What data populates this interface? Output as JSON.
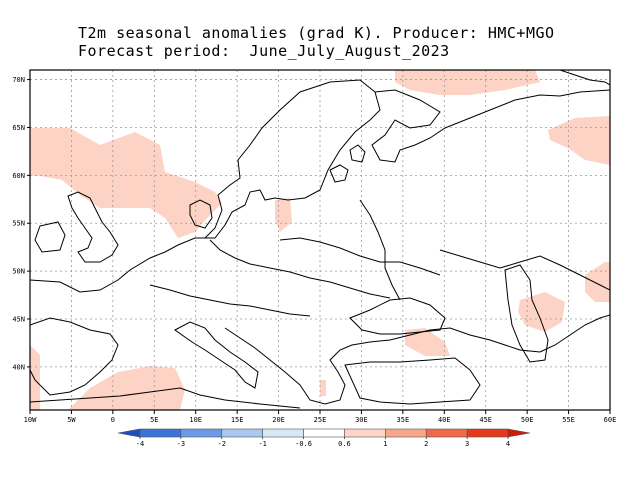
{
  "title": {
    "line1": "T2m seasonal anomalies (grad K). Producer: HMC+MGO",
    "line2": "Forecast period:  June_July_August_2023"
  },
  "map": {
    "lon_ticks": [
      "10W",
      "5W",
      "0",
      "5E",
      "10E",
      "15E",
      "20E",
      "25E",
      "30E",
      "35E",
      "40E",
      "45E",
      "50E",
      "55E",
      "60E"
    ],
    "lat_ticks": [
      "70N",
      "65N",
      "60N",
      "55N",
      "50N",
      "45N",
      "40N"
    ],
    "lon_range": [
      -10,
      60
    ],
    "lat_range": [
      35.5,
      71
    ],
    "grid": true
  },
  "colorbar": {
    "labels": [
      "-4",
      "-3",
      "-2",
      "-1",
      "-0.6",
      "0.6",
      "1",
      "2",
      "3",
      "4"
    ],
    "colors": [
      "#1e4fbf",
      "#3b73d6",
      "#6b9be6",
      "#a8c8f0",
      "#d8e8f2",
      "#ffffff",
      "#fdd6c8",
      "#f8a68a",
      "#f06a4a",
      "#e23a1a",
      "#c81e0a"
    ]
  },
  "anomaly_color": "#fdd3c5"
}
